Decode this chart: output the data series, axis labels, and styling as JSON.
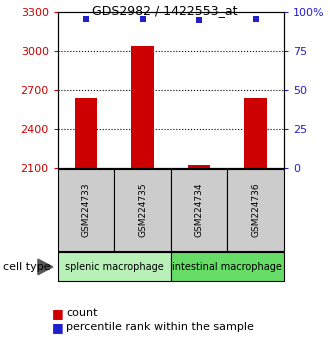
{
  "title": "GDS2982 / 1422553_at",
  "samples": [
    "GSM224733",
    "GSM224735",
    "GSM224734",
    "GSM224736"
  ],
  "counts": [
    2640,
    3040,
    2125,
    2640
  ],
  "percentile_ranks": [
    96,
    96,
    95,
    96
  ],
  "ylim_left": [
    2100,
    3300
  ],
  "ylim_right": [
    0,
    100
  ],
  "left_ticks": [
    2100,
    2400,
    2700,
    3000,
    3300
  ],
  "right_ticks": [
    0,
    25,
    50,
    75,
    100
  ],
  "right_tick_labels": [
    "0",
    "25",
    "50",
    "75",
    "100%"
  ],
  "bar_color": "#cc0000",
  "dot_color": "#2020cc",
  "grid_color": "#000000",
  "left_tick_color": "#cc0000",
  "right_tick_color": "#2020cc",
  "cell_type_colors": {
    "splenic macrophage": "#b8f0b8",
    "intestinal macrophage": "#66dd66"
  },
  "cell_type_label": "cell type",
  "legend_count_label": "count",
  "legend_pct_label": "percentile rank within the sample",
  "sample_box_color": "#cccccc",
  "x_positions": [
    1,
    2,
    3,
    4
  ],
  "bar_width": 0.4
}
